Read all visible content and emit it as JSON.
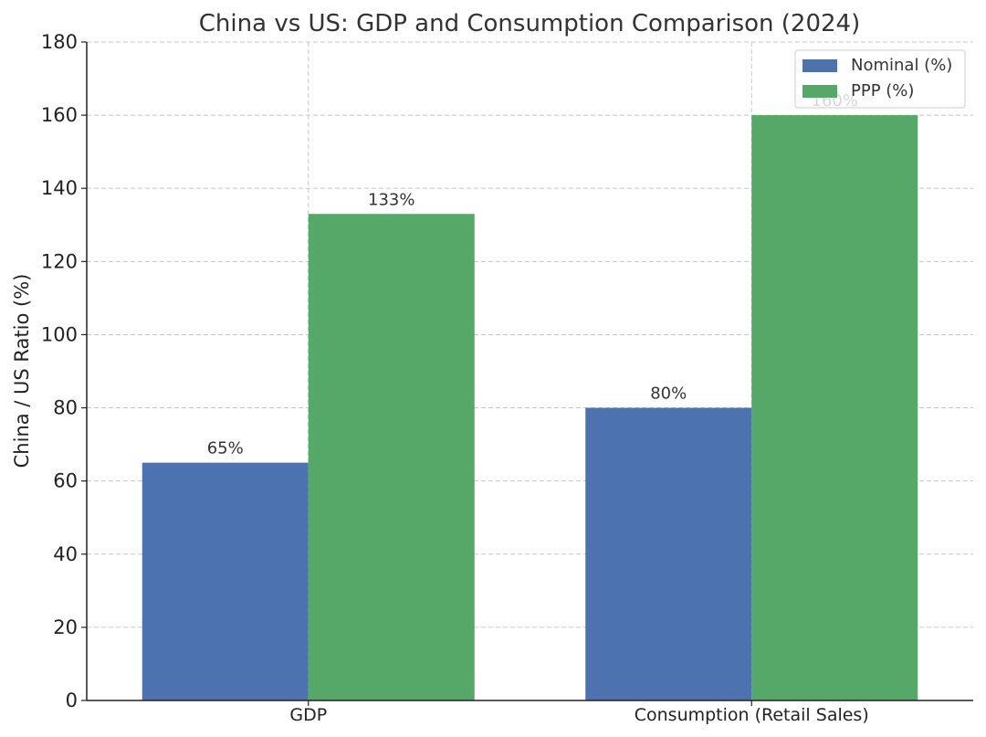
{
  "chart_data": {
    "type": "bar",
    "title": "China vs US: GDP and Consumption Comparison (2024)",
    "xlabel": "",
    "ylabel": "China / US Ratio (%)",
    "categories": [
      "GDP",
      "Consumption (Retail Sales)"
    ],
    "series": [
      {
        "name": "Nominal (%)",
        "values": [
          65,
          80
        ],
        "labels": [
          "65%",
          "80%"
        ],
        "color": "#4c72b0"
      },
      {
        "name": "PPP (%)",
        "values": [
          133,
          160
        ],
        "labels": [
          "133%",
          "160%"
        ],
        "color": "#55a868"
      }
    ],
    "ylim": [
      0,
      180
    ],
    "yticks": [
      0,
      20,
      40,
      60,
      80,
      100,
      120,
      140,
      160,
      180
    ],
    "grid": true,
    "legend_position": "top-right"
  }
}
